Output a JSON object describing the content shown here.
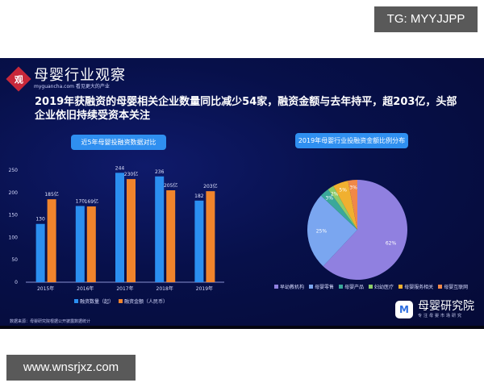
{
  "watermark_top": "TG: MYYJJPP",
  "watermark_bottom": "www.wnsrjxz.com",
  "logo": {
    "mark": "观",
    "title": "母婴行业观察",
    "subtitle": "myguancha.com 看见更大的产业"
  },
  "headline": "2019年获融资的母婴相关企业数量同比减少54家，融资金额与去年持平，超203亿，头部企业依旧持续受资本关注",
  "source": "数据来源：母婴研究院根据公开披露数据统计",
  "brand": {
    "mark": "M",
    "title": "母婴研究院",
    "subtitle": "专注母婴市场研究"
  },
  "chart_data": [
    {
      "type": "bar",
      "title": "近5年母婴投融资数据对比",
      "categories": [
        "2015年",
        "2016年",
        "2017年",
        "2018年",
        "2019年"
      ],
      "series": [
        {
          "name": "融资数量（起）",
          "color": "#2b8ff0",
          "values": [
            130,
            170,
            244,
            236,
            182
          ],
          "labels": [
            "130",
            "170",
            "244",
            "236",
            "182"
          ]
        },
        {
          "name": "融资金额（人民币）",
          "color": "#f0842c",
          "values": [
            185,
            169,
            230,
            205,
            203
          ],
          "labels": [
            "185亿",
            "169亿",
            "230亿",
            "205亿",
            "203亿"
          ]
        }
      ],
      "yticks": [
        0,
        50,
        100,
        150,
        200,
        250
      ],
      "ylim": [
        0,
        250
      ],
      "xlabel": "",
      "ylabel": "",
      "grid": false,
      "legend_position": "bottom"
    },
    {
      "type": "pie",
      "title": "2019年母婴行业投融资金额比例分布",
      "categories": [
        "早幼教机构",
        "母婴零售",
        "母婴产品",
        "妇幼医疗",
        "母婴服务相关",
        "母婴互联网"
      ],
      "values": [
        62,
        25,
        3,
        2,
        5,
        3
      ],
      "labels": [
        "62%",
        "25%",
        "3%",
        "2%",
        "5%",
        "3%"
      ],
      "colors": [
        "#9080e0",
        "#7aa6f0",
        "#3aa89a",
        "#8ccc6a",
        "#f0b030",
        "#f08848"
      ],
      "legend_position": "bottom"
    }
  ]
}
